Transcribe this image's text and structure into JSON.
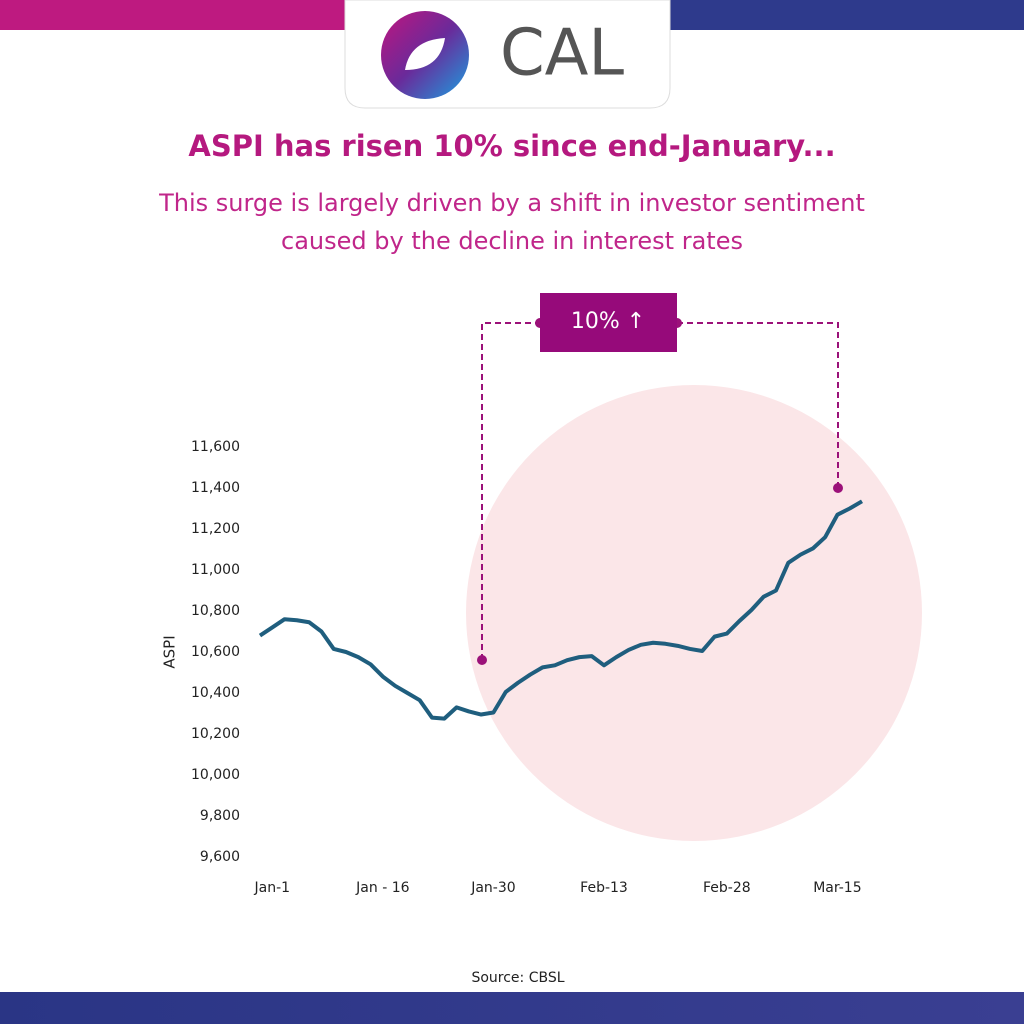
{
  "logo_text": "CAL",
  "chart_data": {
    "type": "line",
    "title": "ASPI has risen 10% since end-January...",
    "subtitle": [
      "This surge is largely driven by a shift in investor sentiment",
      "caused by the decline in interest rates"
    ],
    "annotation": "10% ↑",
    "y_label": "ASPI",
    "source": "Source: CBSL",
    "color": "#1f5e7e",
    "categories": [
      null,
      "Jan-1",
      null,
      null,
      null,
      null,
      null,
      null,
      null,
      null,
      "Jan - 16",
      null,
      null,
      null,
      null,
      null,
      null,
      null,
      null,
      "Jan-30",
      null,
      null,
      null,
      null,
      null,
      null,
      null,
      null,
      "Feb-13",
      null,
      null,
      null,
      null,
      null,
      null,
      null,
      null,
      null,
      "Feb-28",
      null,
      null,
      null,
      null,
      null,
      null,
      null,
      null,
      "Mar-15",
      null,
      null
    ],
    "values": [
      10680,
      10720,
      10760,
      10755,
      10745,
      10700,
      10615,
      10600,
      10575,
      10540,
      10480,
      10435,
      10400,
      10365,
      10280,
      10275,
      10330,
      10310,
      10295,
      10305,
      10405,
      10450,
      10490,
      10525,
      10535,
      10560,
      10575,
      10580,
      10535,
      10575,
      10610,
      10635,
      10645,
      10640,
      10630,
      10615,
      10605,
      10675,
      10690,
      10750,
      10805,
      10870,
      10900,
      11035,
      11075,
      11105,
      11160,
      11270,
      11300,
      11335
    ],
    "ylim": [
      9600,
      11600
    ],
    "yticks": [
      {
        "value": 9600,
        "label": "9,600"
      },
      {
        "value": 9800,
        "label": "9,800"
      },
      {
        "value": 10000,
        "label": "10,000"
      },
      {
        "value": 10200,
        "label": "10,200"
      },
      {
        "value": 10400,
        "label": "10,400"
      },
      {
        "value": 10600,
        "label": "10,600"
      },
      {
        "value": 10800,
        "label": "10,800"
      },
      {
        "value": 11000,
        "label": "11,000"
      },
      {
        "value": 11200,
        "label": "11,200"
      },
      {
        "value": 11400,
        "label": "11,400"
      },
      {
        "value": 11600,
        "label": "11,600"
      }
    ]
  }
}
